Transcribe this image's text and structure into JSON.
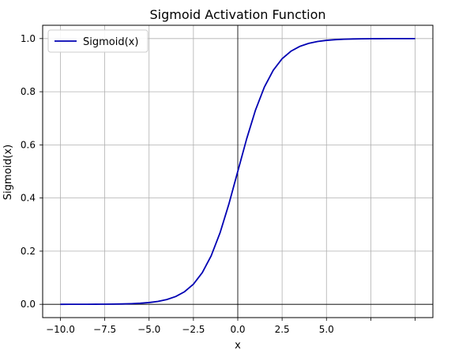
{
  "chart_data": {
    "type": "line",
    "title": "Sigmoid Activation Function",
    "xlabel": "x",
    "ylabel": "Sigmoid(x)",
    "xlim": [
      -11.0,
      11.0
    ],
    "ylim": [
      -0.05,
      1.05
    ],
    "x_ticks": [
      -10.0,
      -7.5,
      -5.0,
      -2.5,
      0.0,
      2.5,
      5.0,
      7.5,
      10.0
    ],
    "x_tick_labels": [
      "−10.0",
      "−7.5",
      "−5.0",
      "−2.5",
      "0.0",
      "2.5",
      "5.0",
      "",
      ""
    ],
    "y_ticks": [
      0.0,
      0.2,
      0.4,
      0.6,
      0.8,
      1.0
    ],
    "y_tick_labels": [
      "0.0",
      "0.2",
      "0.4",
      "0.6",
      "0.8",
      "1.0"
    ],
    "grid": true,
    "legend": {
      "placement": "top-left",
      "entries": [
        "Sigmoid(x)"
      ]
    },
    "reference_lines": {
      "x": 0,
      "y": 0
    },
    "series": [
      {
        "name": "Sigmoid(x)",
        "color": "#0000b3",
        "x": [
          -10,
          -9.5,
          -9,
          -8.5,
          -8,
          -7.5,
          -7,
          -6.5,
          -6,
          -5.5,
          -5,
          -4.5,
          -4,
          -3.5,
          -3,
          -2.5,
          -2,
          -1.5,
          -1,
          -0.5,
          0,
          0.5,
          1,
          1.5,
          2,
          2.5,
          3,
          3.5,
          4,
          4.5,
          5,
          5.5,
          6,
          6.5,
          7,
          7.5,
          8,
          8.5,
          9,
          9.5,
          10
        ],
        "values": [
          5e-05,
          7e-05,
          0.00012,
          0.0002,
          0.00034,
          0.00055,
          0.00091,
          0.0015,
          0.00247,
          0.00407,
          0.00669,
          0.01099,
          0.01799,
          0.02931,
          0.04743,
          0.07586,
          0.1192,
          0.18243,
          0.26894,
          0.37754,
          0.5,
          0.62246,
          0.73106,
          0.81757,
          0.8808,
          0.92414,
          0.95257,
          0.97069,
          0.98201,
          0.98901,
          0.99331,
          0.99593,
          0.99753,
          0.9985,
          0.99909,
          0.99945,
          0.99966,
          0.9998,
          0.99988,
          0.99993,
          0.99995
        ]
      }
    ]
  }
}
